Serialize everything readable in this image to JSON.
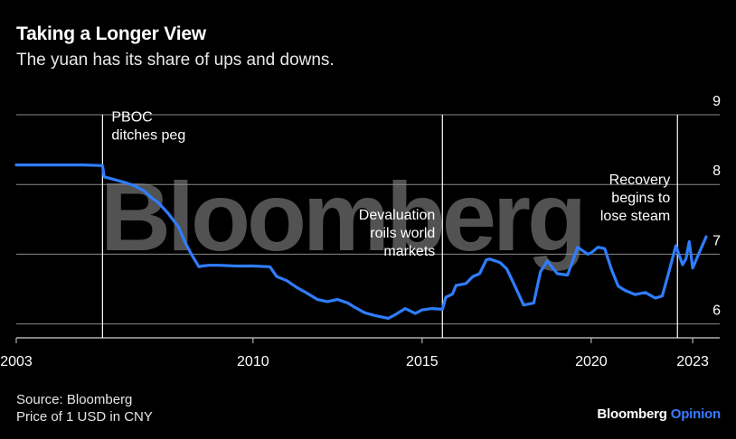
{
  "header": {
    "title": "Taking a Longer View",
    "subtitle": "The yuan has its share of ups and downs."
  },
  "footer": {
    "source": "Source: Bloomberg",
    "note": "Price of 1 USD in CNY",
    "brand_main": "Bloomberg",
    "brand_sub": "Opinion"
  },
  "watermark": "Bloomberg",
  "colors": {
    "background": "#000000",
    "line": "#2f7dff",
    "grid": "#ffffff",
    "text": "#ffffff",
    "brand_accent": "#3a7bff"
  },
  "chart_data": {
    "type": "line",
    "title": "Taking a Longer View",
    "subtitle": "The yuan has its share of ups and downs.",
    "xlabel": "",
    "ylabel": "Price of 1 USD in CNY",
    "xlim": [
      2003.0,
      2023.8
    ],
    "ylim": [
      5.8,
      9.0
    ],
    "x_ticks": [
      2003,
      2010,
      2015,
      2020,
      2023
    ],
    "x_tick_labels": [
      "2003",
      "2010",
      "2015",
      "2020",
      "2023"
    ],
    "y_ticks": [
      6,
      7,
      8,
      9
    ],
    "y_tick_labels": [
      "6",
      "7",
      "8",
      "9"
    ],
    "grid": true,
    "annotations": [
      {
        "x": 2005.55,
        "lines": [
          "PBOC",
          "ditches peg"
        ],
        "align": "left",
        "y": 8.9
      },
      {
        "x": 2015.6,
        "lines": [
          "Devaluation",
          "roils world",
          "markets"
        ],
        "align": "right",
        "y": 7.5
      },
      {
        "x": 2022.55,
        "lines": [
          "Recovery",
          "begins to",
          "lose steam"
        ],
        "align": "right",
        "y": 8.0
      }
    ],
    "series": [
      {
        "name": "USD/CNY",
        "x": [
          2003.0,
          2003.5,
          2004.0,
          2004.5,
          2005.0,
          2005.55,
          2005.6,
          2005.9,
          2006.2,
          2006.5,
          2006.8,
          2007.0,
          2007.2,
          2007.5,
          2007.8,
          2008.0,
          2008.2,
          2008.4,
          2008.5,
          2008.7,
          2009.0,
          2009.5,
          2010.0,
          2010.5,
          2010.7,
          2011.0,
          2011.3,
          2011.6,
          2011.9,
          2012.2,
          2012.5,
          2012.8,
          2013.0,
          2013.3,
          2013.6,
          2014.0,
          2014.2,
          2014.5,
          2014.8,
          2015.0,
          2015.3,
          2015.6,
          2015.7,
          2015.9,
          2016.0,
          2016.3,
          2016.5,
          2016.7,
          2016.9,
          2017.0,
          2017.3,
          2017.5,
          2017.7,
          2018.0,
          2018.3,
          2018.5,
          2018.7,
          2019.0,
          2019.3,
          2019.6,
          2019.9,
          2020.0,
          2020.2,
          2020.4,
          2020.6,
          2020.8,
          2021.0,
          2021.3,
          2021.6,
          2021.9,
          2022.1,
          2022.3,
          2022.5,
          2022.7,
          2022.8,
          2022.9,
          2023.0,
          2023.2,
          2023.4
        ],
        "y": [
          8.28,
          8.28,
          8.28,
          8.28,
          8.28,
          8.27,
          8.11,
          8.07,
          8.03,
          7.98,
          7.9,
          7.81,
          7.74,
          7.58,
          7.39,
          7.16,
          6.98,
          6.82,
          6.83,
          6.84,
          6.84,
          6.83,
          6.83,
          6.82,
          6.68,
          6.62,
          6.52,
          6.44,
          6.35,
          6.32,
          6.35,
          6.3,
          6.24,
          6.16,
          6.12,
          6.08,
          6.13,
          6.22,
          6.15,
          6.2,
          6.22,
          6.21,
          6.38,
          6.43,
          6.55,
          6.58,
          6.68,
          6.72,
          6.92,
          6.93,
          6.88,
          6.79,
          6.59,
          6.27,
          6.3,
          6.75,
          6.9,
          6.72,
          6.7,
          7.1,
          7.0,
          7.02,
          7.1,
          7.08,
          6.78,
          6.54,
          6.48,
          6.42,
          6.45,
          6.37,
          6.4,
          6.75,
          7.12,
          6.85,
          6.93,
          7.18,
          6.8,
          7.03,
          7.25
        ]
      }
    ]
  }
}
